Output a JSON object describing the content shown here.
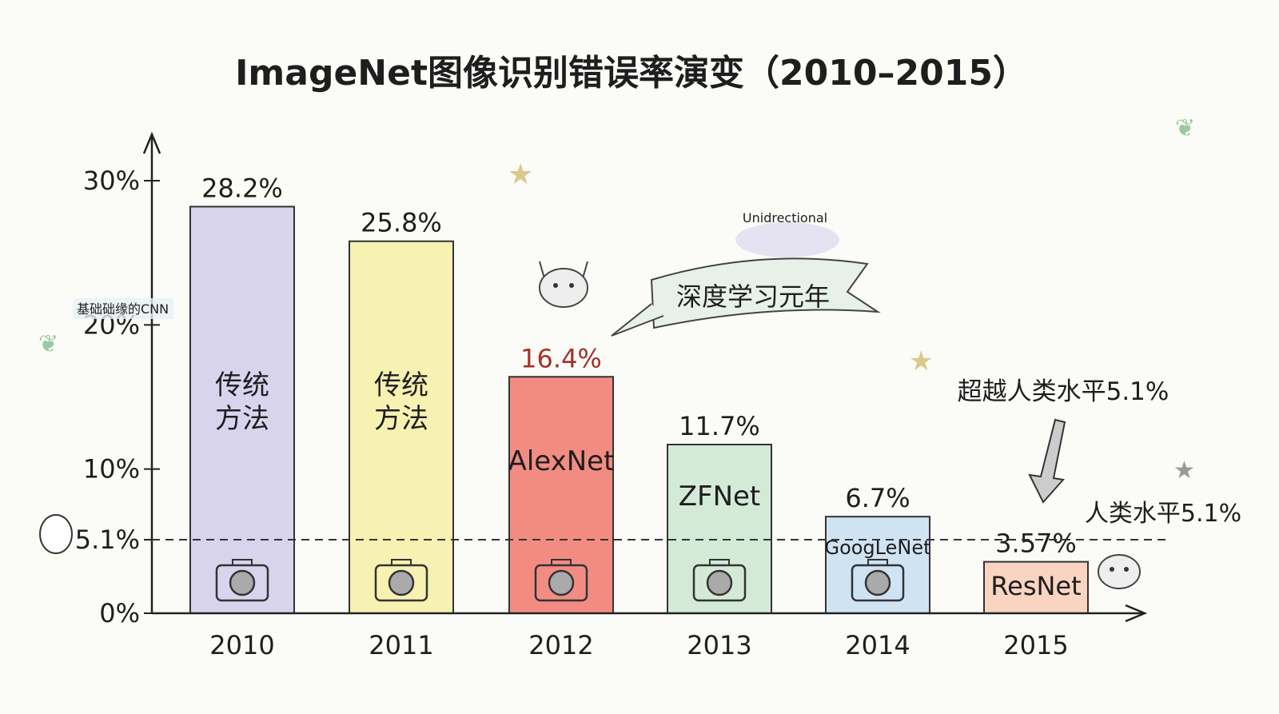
{
  "chart_data": {
    "type": "bar",
    "title": "ImageNet图像识别错误率演变（2010–2015）",
    "categories": [
      "2010",
      "2011",
      "2012",
      "2013",
      "2014",
      "2015"
    ],
    "values": [
      28.2,
      25.8,
      16.4,
      11.7,
      6.7,
      3.57
    ],
    "data_labels": [
      "28.2%",
      "25.8%",
      "16.4%",
      "11.7%",
      "6.7%",
      "3.57%"
    ],
    "bar_labels": [
      "传统\n方法",
      "传统\n方法",
      "AlexNet",
      "ZFNet",
      "GoogLeNet",
      "ResNet"
    ],
    "bar_colors": [
      "#d9d4ee",
      "#f7f1b2",
      "#f28c83",
      "#d3ead7",
      "#cfe3f3",
      "#f9d4c0"
    ],
    "highlight_label_color": "#a3322a",
    "ylim": [
      0,
      30
    ],
    "yticks": [
      0,
      5.1,
      10,
      20,
      30
    ],
    "ytick_labels": [
      "0%",
      "5.1%",
      "10%",
      "20%",
      "30%"
    ],
    "grid": false,
    "reference_line": {
      "value": 5.1,
      "label": "人类水平5.1%"
    },
    "annotations": {
      "deep_learning": "深度学习元年",
      "surpass": "超越人类水平5.1%",
      "cnn_note": "基础础缘的CNN",
      "unidirectional": "Unidrectional"
    },
    "icons": [
      "camera-icon",
      "cat-icon",
      "star-icon",
      "leaf-icon",
      "person-icon"
    ]
  }
}
